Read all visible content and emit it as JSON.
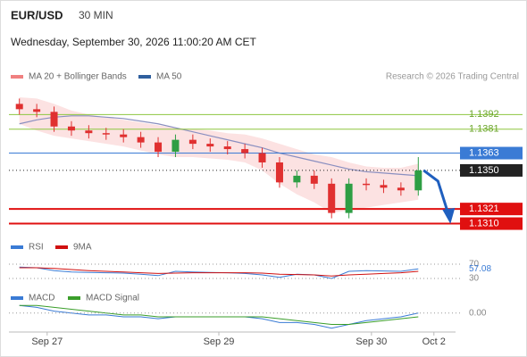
{
  "chart_data": {
    "type": "candlestick",
    "symbol": "EUR/USD",
    "timeframe": "30 MIN",
    "datetime": "Wednesday, September 30, 2026 11:00:20 AM CET",
    "credit": "Research © 2026 Trading Central",
    "legend": [
      {
        "name": "MA 20 + Bollinger Bands",
        "color": "#f08080"
      },
      {
        "name": "MA 50",
        "color": "#2f5f9e"
      }
    ],
    "ylim": [
      1.1305,
      1.1411
    ],
    "xticks": [
      {
        "value": 1.6,
        "label": "Sep 27"
      },
      {
        "value": 11.5,
        "label": "Sep 29"
      },
      {
        "value": 20.3,
        "label": "Sep 30"
      },
      {
        "value": 23.9,
        "label": "Oct 2"
      }
    ],
    "candles": {
      "open": [
        1.14,
        1.1396,
        1.1394,
        1.1383,
        1.138,
        1.1378,
        1.1377,
        1.1375,
        1.1371,
        1.1364,
        1.1373,
        1.137,
        1.1368,
        1.1366,
        1.1363,
        1.1356,
        1.1341,
        1.1346,
        1.134,
        1.1318,
        1.134,
        1.1339,
        1.1337,
        1.1335
      ],
      "high": [
        1.1404,
        1.14,
        1.1398,
        1.1387,
        1.1384,
        1.1382,
        1.1381,
        1.1379,
        1.1375,
        1.1377,
        1.1377,
        1.1374,
        1.1372,
        1.137,
        1.1367,
        1.136,
        1.135,
        1.135,
        1.1344,
        1.1344,
        1.1344,
        1.1343,
        1.1341,
        1.136
      ],
      "low": [
        1.1392,
        1.139,
        1.1379,
        1.1376,
        1.1374,
        1.1373,
        1.1371,
        1.1367,
        1.136,
        1.136,
        1.1366,
        1.1364,
        1.1362,
        1.1359,
        1.1352,
        1.1337,
        1.1337,
        1.1336,
        1.1314,
        1.1314,
        1.1335,
        1.1333,
        1.1331,
        1.1331
      ],
      "close": [
        1.1396,
        1.1394,
        1.1383,
        1.138,
        1.1378,
        1.1377,
        1.1375,
        1.1371,
        1.1364,
        1.1373,
        1.137,
        1.1368,
        1.1366,
        1.1363,
        1.1356,
        1.1341,
        1.1346,
        1.134,
        1.1318,
        1.134,
        1.1339,
        1.1337,
        1.1335,
        1.135
      ],
      "up_color": "#2e9e44",
      "down_color": "#e03030"
    },
    "bollinger": {
      "upper": [
        1.1405,
        1.1404,
        1.14,
        1.1395,
        1.1392,
        1.139,
        1.1388,
        1.1386,
        1.1384,
        1.1382,
        1.1381,
        1.138,
        1.1378,
        1.1377,
        1.1374,
        1.137,
        1.1366,
        1.1362,
        1.136,
        1.1356,
        1.1353,
        1.1352,
        1.1352,
        1.1355
      ],
      "lower": [
        1.1385,
        1.138,
        1.1376,
        1.1374,
        1.1372,
        1.137,
        1.1368,
        1.1365,
        1.1362,
        1.136,
        1.136,
        1.1359,
        1.1358,
        1.1356,
        1.135,
        1.134,
        1.1332,
        1.1326,
        1.1318,
        1.132,
        1.1322,
        1.1324,
        1.1326,
        1.1328
      ],
      "color": "#fbd5d5"
    },
    "ma50": {
      "values": [
        1.1385,
        1.1388,
        1.139,
        1.1391,
        1.1391,
        1.139,
        1.1389,
        1.1387,
        1.1385,
        1.1382,
        1.1379,
        1.1376,
        1.1373,
        1.137,
        1.1367,
        1.1363,
        1.136,
        1.1357,
        1.1354,
        1.1351,
        1.1349,
        1.1348,
        1.1347,
        1.1346
      ],
      "color": "#8a8fc0"
    },
    "levels": [
      {
        "value": 1.1392,
        "color": "#8dc63f",
        "boxed": false
      },
      {
        "value": 1.1381,
        "color": "#8dc63f",
        "boxed": false
      },
      {
        "value": 1.1363,
        "color": "#3a7bd5",
        "boxed": true
      },
      {
        "value": {
          "value": 1.135,
          "label": "1.1350"
        },
        "color": "#222222",
        "boxed": true,
        "dotted": true
      },
      {
        "value": 1.1321,
        "color": "#e01010",
        "boxed": true
      },
      {
        "value": {
          "value": 1.131,
          "label": "1.1310"
        },
        "color": "#e01010",
        "boxed": true
      }
    ],
    "rsi": {
      "ylim": [
        20,
        90
      ],
      "yticks": [
        30,
        70
      ],
      "current": 57.08,
      "series": [
        {
          "name": "RSI",
          "color": "#3a7bd5",
          "values": [
            62,
            60,
            52,
            48,
            47,
            46,
            45,
            42,
            38,
            50,
            48,
            47,
            46,
            44,
            40,
            33,
            42,
            40,
            30,
            50,
            52,
            51,
            50,
            57
          ]
        },
        {
          "name": "9MA",
          "color": "#d01010",
          "values": [
            60,
            60,
            58,
            55,
            52,
            50,
            48,
            46,
            44,
            45,
            46,
            46,
            46,
            46,
            45,
            42,
            41,
            40,
            37,
            40,
            42,
            44,
            46,
            50
          ]
        }
      ]
    },
    "macd": {
      "ylim": [
        -0.001,
        0.0006
      ],
      "yticks": [
        {
          "value": 0,
          "label": "0.00"
        }
      ],
      "series": [
        {
          "name": "MACD",
          "color": "#3a7bd5",
          "values": [
            0.0004,
            0.0003,
            0.0001,
            0,
            -0.0001,
            -0.0001,
            -0.0002,
            -0.0002,
            -0.0003,
            -0.0002,
            -0.0002,
            -0.0002,
            -0.0002,
            -0.0002,
            -0.0003,
            -0.0005,
            -0.0005,
            -0.0006,
            -0.0008,
            -0.0006,
            -0.0004,
            -0.0003,
            -0.0002,
            0
          ]
        },
        {
          "name": "MACD Signal",
          "color": "#3a9e2a",
          "values": [
            0.0004,
            0.0004,
            0.0003,
            0.0002,
            0.0001,
            0,
            -0.0001,
            -0.0001,
            -0.0002,
            -0.0002,
            -0.0002,
            -0.0002,
            -0.0002,
            -0.0002,
            -0.0002,
            -0.0003,
            -0.0004,
            -0.0005,
            -0.0006,
            -0.0006,
            -0.0005,
            -0.0004,
            -0.0003,
            -0.0002
          ]
        }
      ]
    }
  }
}
